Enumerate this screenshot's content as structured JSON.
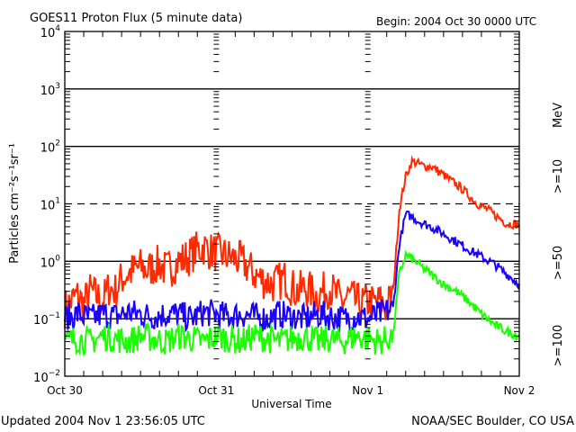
{
  "chart_data": {
    "type": "line",
    "title": "GOES11 Proton Flux (5 minute data)",
    "begin_label": "Begin: 2004 Oct 30 0000 UTC",
    "xlabel": "Universal Time",
    "ylabel": "Particles cm⁻²s⁻¹sr⁻¹",
    "units_label": "MeV",
    "yscale": "log",
    "ylim": [
      0.01,
      10000
    ],
    "xlim_hours": [
      0,
      72
    ],
    "x_ticks": [
      {
        "hour": 0,
        "label": "Oct 30"
      },
      {
        "hour": 24,
        "label": "Oct 31"
      },
      {
        "hour": 48,
        "label": "Nov 1"
      },
      {
        "hour": 72,
        "label": "Nov 2"
      }
    ],
    "y_ticks": [
      {
        "value": 10000,
        "base": "10",
        "exp": "4"
      },
      {
        "value": 1000,
        "base": "10",
        "exp": "3"
      },
      {
        "value": 100,
        "base": "10",
        "exp": "2"
      },
      {
        "value": 10,
        "base": "10",
        "exp": "1"
      },
      {
        "value": 1,
        "base": "10",
        "exp": "0"
      },
      {
        "value": 0.1,
        "base": "10",
        "exp": "−1"
      },
      {
        "value": 0.01,
        "base": "10",
        "exp": "−2"
      }
    ],
    "threshold_lines": [
      {
        "value": 10,
        "style": "dashed"
      }
    ],
    "series": [
      {
        "name": ">=10",
        "color": "#ff2a00",
        "x_hours": [
          0,
          1,
          2,
          3,
          4,
          5,
          6,
          7,
          8,
          9,
          10,
          11,
          12,
          13,
          14,
          15,
          16,
          17,
          18,
          19,
          20,
          21,
          22,
          23,
          24,
          25,
          26,
          27,
          28,
          29,
          30,
          31,
          32,
          33,
          34,
          35,
          36,
          37,
          38,
          39,
          40,
          41,
          42,
          43,
          44,
          45,
          46,
          47,
          48,
          49,
          50,
          51,
          52,
          53,
          54,
          55,
          56,
          57,
          58,
          59,
          60,
          61,
          62,
          63,
          64,
          65,
          66,
          67,
          68,
          69,
          70,
          71,
          72
        ],
        "values": [
          0.15,
          0.2,
          0.25,
          0.18,
          0.3,
          0.25,
          0.2,
          0.35,
          0.3,
          0.5,
          0.6,
          0.7,
          0.8,
          0.7,
          0.8,
          0.9,
          0.7,
          0.8,
          1.0,
          1.1,
          1.3,
          1.6,
          1.8,
          1.5,
          1.4,
          1.3,
          1.2,
          1.1,
          1.0,
          0.8,
          0.6,
          0.5,
          0.45,
          0.4,
          0.45,
          0.5,
          0.35,
          0.3,
          0.35,
          0.3,
          0.25,
          0.3,
          0.35,
          0.25,
          0.2,
          0.25,
          0.2,
          0.18,
          0.2,
          0.18,
          0.2,
          0.15,
          0.3,
          8,
          30,
          55,
          50,
          45,
          45,
          38,
          32,
          26,
          22,
          18,
          14,
          11,
          9,
          8,
          6.5,
          5.5,
          4.5,
          4.5,
          4.3
        ]
      },
      {
        "name": ">=50",
        "color": "#1a00ff",
        "x_hours": [
          0,
          2,
          4,
          6,
          8,
          10,
          12,
          14,
          16,
          18,
          20,
          22,
          24,
          26,
          28,
          30,
          32,
          34,
          36,
          38,
          40,
          42,
          44,
          46,
          48,
          50,
          52,
          53,
          54,
          55,
          56,
          58,
          60,
          62,
          64,
          66,
          68,
          70,
          72
        ],
        "values": [
          0.1,
          0.12,
          0.1,
          0.12,
          0.11,
          0.13,
          0.12,
          0.11,
          0.12,
          0.12,
          0.1,
          0.13,
          0.12,
          0.11,
          0.12,
          0.11,
          0.1,
          0.12,
          0.11,
          0.1,
          0.12,
          0.11,
          0.1,
          0.11,
          0.1,
          0.12,
          0.15,
          2,
          6.5,
          6,
          5,
          4,
          3,
          2.2,
          1.6,
          1.2,
          0.9,
          0.6,
          0.4
        ]
      },
      {
        "name": ">=100",
        "color": "#1aff00",
        "x_hours": [
          0,
          2,
          4,
          6,
          8,
          10,
          12,
          14,
          16,
          18,
          20,
          22,
          24,
          26,
          28,
          30,
          32,
          34,
          36,
          38,
          40,
          42,
          44,
          46,
          48,
          50,
          52,
          53,
          54,
          55,
          56,
          58,
          60,
          62,
          64,
          66,
          68,
          70,
          72
        ],
        "values": [
          0.04,
          0.045,
          0.04,
          0.05,
          0.045,
          0.04,
          0.05,
          0.045,
          0.04,
          0.05,
          0.045,
          0.04,
          0.05,
          0.045,
          0.04,
          0.05,
          0.045,
          0.04,
          0.045,
          0.05,
          0.04,
          0.045,
          0.04,
          0.05,
          0.045,
          0.04,
          0.05,
          0.6,
          1.3,
          1.1,
          0.9,
          0.6,
          0.4,
          0.3,
          0.2,
          0.12,
          0.08,
          0.06,
          0.05
        ]
      }
    ]
  },
  "footer": {
    "updated": "Updated 2004 Nov  1 23:56:05 UTC",
    "source": "NOAA/SEC Boulder, CO USA"
  }
}
